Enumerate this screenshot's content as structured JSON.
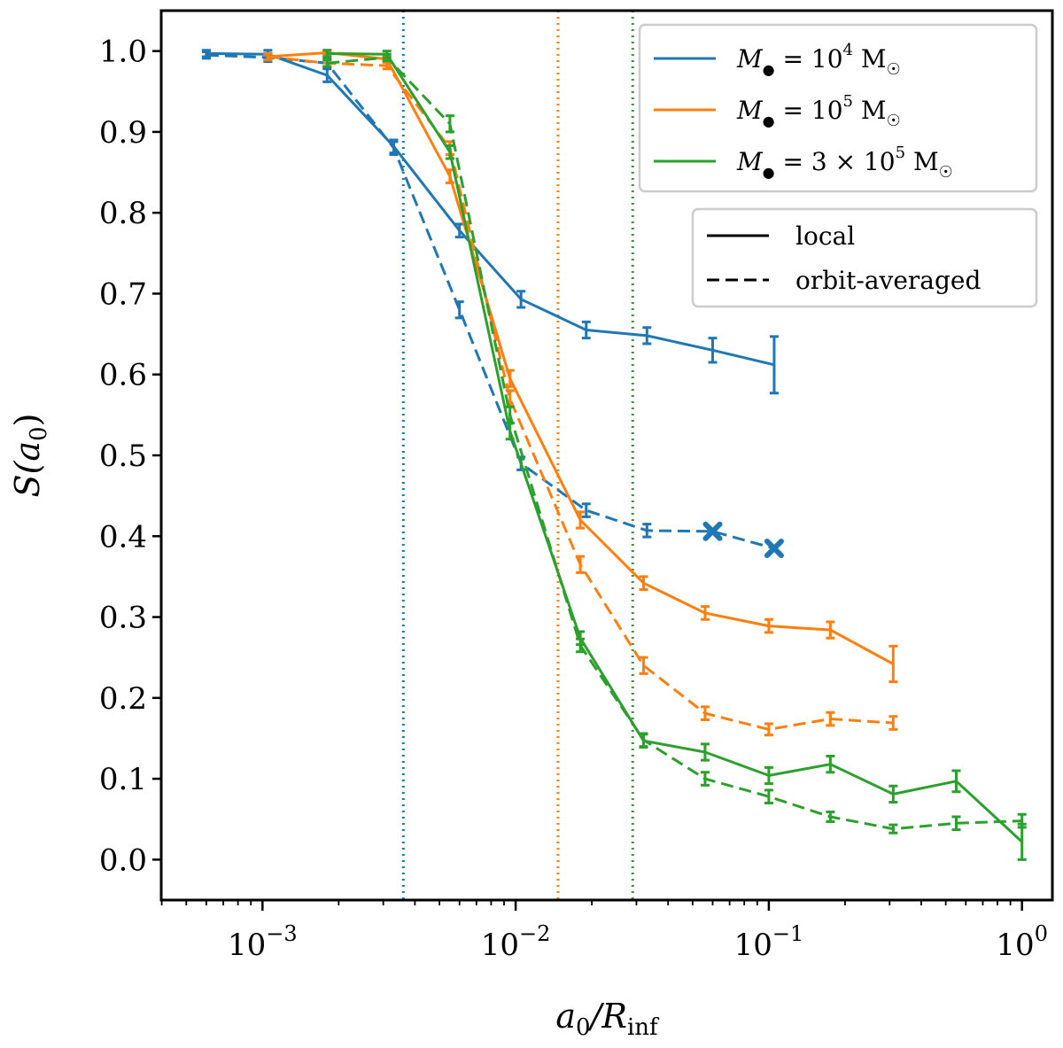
{
  "chart_data": {
    "type": "line",
    "xscale": "log",
    "xlim_log10": [
      -3.4,
      0.12
    ],
    "ylim": [
      -0.05,
      1.05
    ],
    "xlabel": "a",
    "xlabel_sub": "0",
    "xlabel_mid": "/R",
    "xlabel_sub2": "inf",
    "ylabel": "S(a",
    "ylabel_sub": "0",
    "ylabel_end": ")",
    "x_major_ticks": [
      {
        "exp": -3,
        "base": "10",
        "sup": "−3"
      },
      {
        "exp": -2,
        "base": "10",
        "sup": "−2"
      },
      {
        "exp": -1,
        "base": "10",
        "sup": "−1"
      },
      {
        "exp": 0,
        "base": "10",
        "sup": "0"
      }
    ],
    "y_ticks": [
      "0.0",
      "0.1",
      "0.2",
      "0.3",
      "0.4",
      "0.5",
      "0.6",
      "0.7",
      "0.8",
      "0.9",
      "1.0"
    ],
    "vlines": [
      {
        "x": 0.0036,
        "color": "#1f77b4"
      },
      {
        "x": 0.0147,
        "color": "#ff7f0e"
      },
      {
        "x": 0.029,
        "color": "#2ca02c"
      }
    ],
    "series": [
      {
        "name": "M● = 10^4 M☉, local",
        "color": "#1f77b4",
        "style": "solid",
        "points": [
          [
            0.0006,
            0.997,
            0.004
          ],
          [
            0.00105,
            0.996,
            0.005
          ],
          [
            0.0018,
            0.97,
            0.008
          ],
          [
            0.0033,
            0.882,
            0.008
          ],
          [
            0.006,
            0.778,
            0.008
          ],
          [
            0.0105,
            0.693,
            0.01
          ],
          [
            0.019,
            0.655,
            0.01
          ],
          [
            0.033,
            0.648,
            0.01
          ],
          [
            0.06,
            0.63,
            0.015
          ],
          [
            0.105,
            0.612,
            0.035
          ]
        ]
      },
      {
        "name": "M● = 10^4 M☉, orbit-averaged",
        "color": "#1f77b4",
        "style": "dashed",
        "points": [
          [
            0.0006,
            0.995,
            0.004
          ],
          [
            0.00105,
            0.992,
            0.005
          ],
          [
            0.0018,
            0.985,
            0.005
          ],
          [
            0.0033,
            0.88,
            0.008
          ],
          [
            0.006,
            0.68,
            0.01
          ],
          [
            0.0105,
            0.49,
            0.008
          ],
          [
            0.019,
            0.432,
            0.008
          ],
          [
            0.033,
            0.407,
            0.008
          ],
          [
            0.06,
            0.406,
            0,
            "x"
          ],
          [
            0.105,
            0.385,
            0,
            "x"
          ]
        ]
      },
      {
        "name": "M● = 10^5 M☉, local",
        "color": "#ff7f0e",
        "style": "solid",
        "points": [
          [
            0.00105,
            0.993,
            0.004
          ],
          [
            0.0018,
            0.998,
            0.003
          ],
          [
            0.0031,
            0.99,
            0.004
          ],
          [
            0.0055,
            0.845,
            0.008
          ],
          [
            0.0095,
            0.595,
            0.01
          ],
          [
            0.018,
            0.42,
            0.01
          ],
          [
            0.032,
            0.342,
            0.008
          ],
          [
            0.056,
            0.305,
            0.008
          ],
          [
            0.1,
            0.289,
            0.008
          ],
          [
            0.175,
            0.284,
            0.01
          ],
          [
            0.31,
            0.242,
            0.022
          ]
        ]
      },
      {
        "name": "M● = 10^5 M☉, orbit-averaged",
        "color": "#ff7f0e",
        "style": "dashed",
        "points": [
          [
            0.00105,
            0.993,
            0.004
          ],
          [
            0.0018,
            0.985,
            0.004
          ],
          [
            0.0031,
            0.982,
            0.004
          ],
          [
            0.0055,
            0.88,
            0.008
          ],
          [
            0.0095,
            0.57,
            0.01
          ],
          [
            0.018,
            0.365,
            0.01
          ],
          [
            0.032,
            0.24,
            0.01
          ],
          [
            0.056,
            0.181,
            0.008
          ],
          [
            0.1,
            0.161,
            0.007
          ],
          [
            0.175,
            0.174,
            0.008
          ],
          [
            0.31,
            0.169,
            0.008
          ]
        ]
      },
      {
        "name": "M● = 3 × 10^5 M☉, local",
        "color": "#2ca02c",
        "style": "solid",
        "points": [
          [
            0.0018,
            0.997,
            0.004
          ],
          [
            0.0031,
            0.996,
            0.004
          ],
          [
            0.0055,
            0.875,
            0.008
          ],
          [
            0.0095,
            0.53,
            0.01
          ],
          [
            0.018,
            0.274,
            0.008
          ],
          [
            0.032,
            0.147,
            0.008
          ],
          [
            0.056,
            0.133,
            0.01
          ],
          [
            0.1,
            0.104,
            0.01
          ],
          [
            0.175,
            0.118,
            0.01
          ],
          [
            0.31,
            0.081,
            0.01
          ],
          [
            0.55,
            0.097,
            0.013
          ],
          [
            1.0,
            0.022,
            0.022
          ]
        ]
      },
      {
        "name": "M● = 3 × 10^5 M☉, orbit-averaged",
        "color": "#2ca02c",
        "style": "dashed",
        "points": [
          [
            0.0018,
            0.985,
            0.004
          ],
          [
            0.0031,
            0.992,
            0.004
          ],
          [
            0.0055,
            0.91,
            0.01
          ],
          [
            0.0095,
            0.55,
            0.01
          ],
          [
            0.018,
            0.265,
            0.008
          ],
          [
            0.032,
            0.148,
            0.008
          ],
          [
            0.056,
            0.1,
            0.008
          ],
          [
            0.1,
            0.078,
            0.008
          ],
          [
            0.175,
            0.053,
            0.006
          ],
          [
            0.31,
            0.038,
            0.005
          ],
          [
            0.55,
            0.045,
            0.008
          ],
          [
            1.0,
            0.048,
            0.008
          ]
        ]
      }
    ],
    "legend_mass": [
      {
        "color": "#1f77b4",
        "prefix": "M",
        "sub": "●",
        "mid": " = 10",
        "sup": "4",
        "suffix": " M",
        "sub2": "☉"
      },
      {
        "color": "#ff7f0e",
        "prefix": "M",
        "sub": "●",
        "mid": " = 10",
        "sup": "5",
        "suffix": " M",
        "sub2": "☉"
      },
      {
        "color": "#2ca02c",
        "prefix": "M",
        "sub": "●",
        "mid": " = 3 × 10",
        "sup": "5",
        "suffix": " M",
        "sub2": "☉"
      }
    ],
    "legend_style": [
      {
        "style": "solid",
        "label": "local"
      },
      {
        "style": "dashed",
        "label": "orbit-averaged"
      }
    ],
    "legend_placement": "top-right"
  }
}
